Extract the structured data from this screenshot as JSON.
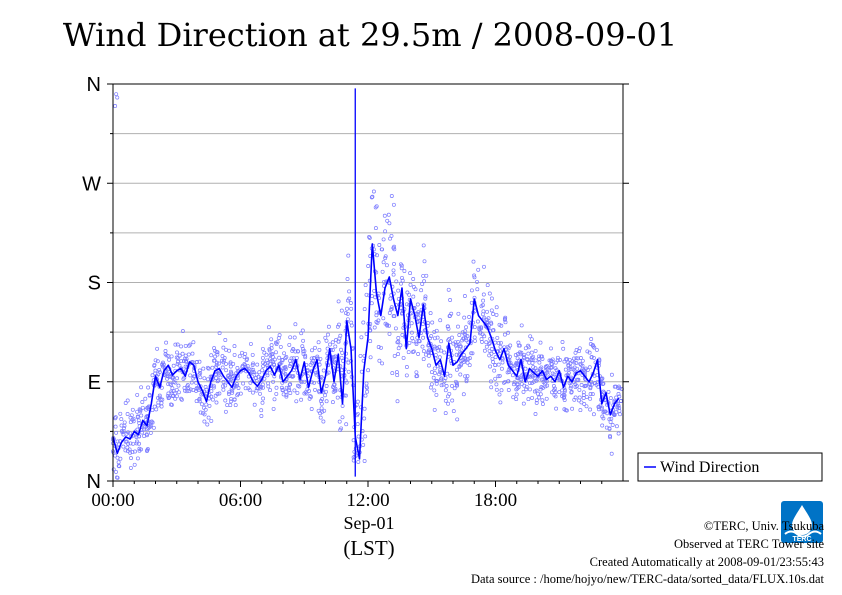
{
  "chart_data": {
    "type": "line",
    "title": "Wind Direction at 29.5m / 2008-09-01",
    "xlabel": "Sep-01",
    "xlabel_sub": "(LST)",
    "x_unit": "hours LST",
    "xlim": [
      0,
      24
    ],
    "ylim": [
      0,
      360
    ],
    "x_ticks": [
      {
        "value": 0,
        "label": "00:00"
      },
      {
        "value": 6,
        "label": "06:00"
      },
      {
        "value": 12,
        "label": "12:00"
      },
      {
        "value": 18,
        "label": "18:00"
      }
    ],
    "y_ticks": [
      {
        "value": 0,
        "label": "N"
      },
      {
        "value": 90,
        "label": "E"
      },
      {
        "value": 180,
        "label": "S"
      },
      {
        "value": 270,
        "label": "W"
      },
      {
        "value": 360,
        "label": "N"
      }
    ],
    "grid": true,
    "legend": {
      "placement": "right",
      "entries": [
        "Wind Direction"
      ]
    },
    "series": [
      {
        "name": "Wind Direction",
        "color": "#0000ff",
        "scatter_color": "#7b7bff",
        "x": [
          0,
          0.2,
          0.4,
          0.6,
          0.8,
          1.0,
          1.2,
          1.4,
          1.6,
          1.8,
          2.0,
          2.2,
          2.4,
          2.6,
          2.8,
          3.0,
          3.2,
          3.4,
          3.6,
          3.8,
          4.0,
          4.2,
          4.4,
          4.6,
          4.8,
          5.0,
          5.2,
          5.4,
          5.6,
          5.8,
          6.0,
          6.2,
          6.4,
          6.6,
          6.8,
          7.0,
          7.2,
          7.4,
          7.6,
          7.8,
          8.0,
          8.2,
          8.4,
          8.6,
          8.8,
          9.0,
          9.2,
          9.4,
          9.6,
          9.8,
          10.0,
          10.2,
          10.4,
          10.6,
          10.8,
          11.0,
          11.2,
          11.4,
          11.6,
          11.8,
          12.0,
          12.2,
          12.4,
          12.6,
          12.8,
          13.0,
          13.2,
          13.4,
          13.6,
          13.8,
          14.0,
          14.2,
          14.4,
          14.6,
          14.8,
          15.0,
          15.2,
          15.4,
          15.6,
          15.8,
          16.0,
          16.2,
          16.4,
          16.6,
          16.8,
          17.0,
          17.2,
          17.4,
          17.6,
          17.8,
          18.0,
          18.2,
          18.4,
          18.6,
          18.8,
          19.0,
          19.2,
          19.4,
          19.6,
          19.8,
          20.0,
          20.2,
          20.4,
          20.6,
          20.8,
          21.0,
          21.2,
          21.4,
          21.6,
          21.8,
          22.0,
          22.2,
          22.4,
          22.6,
          22.8,
          23.0,
          23.2,
          23.4,
          23.6,
          23.8
        ],
        "y": [
          40,
          25,
          35,
          40,
          38,
          45,
          42,
          55,
          50,
          70,
          95,
          85,
          100,
          105,
          96,
          100,
          102,
          95,
          108,
          105,
          90,
          82,
          72,
          90,
          100,
          102,
          95,
          90,
          85,
          95,
          100,
          102,
          98,
          90,
          86,
          92,
          100,
          104,
          96,
          105,
          90,
          95,
          100,
          110,
          92,
          108,
          85,
          100,
          110,
          80,
          95,
          120,
          90,
          115,
          70,
          145,
          120,
          40,
          20,
          100,
          130,
          215,
          170,
          150,
          175,
          185,
          165,
          150,
          175,
          120,
          165,
          150,
          130,
          160,
          130,
          120,
          105,
          110,
          95,
          125,
          105,
          108,
          115,
          120,
          125,
          165,
          150,
          145,
          140,
          130,
          118,
          110,
          120,
          105,
          100,
          95,
          110,
          90,
          102,
          98,
          95,
          100,
          92,
          95,
          90,
          100,
          85,
          95,
          90,
          98,
          100,
          95,
          90,
          98,
          110,
          70,
          80,
          60,
          70,
          75
        ]
      }
    ]
  },
  "credits": {
    "copyright": "©TERC, Univ. Tsukuba",
    "observed": "Observed at TERC Tower site",
    "created": "Created Automatically at 2008-09-01/23:55:43",
    "source": "Data source : /home/hojyo/new/TERC-data/sorted_data/FLUX.10s.dat"
  },
  "logo": {
    "text": "TERC",
    "color": "#0073c6"
  }
}
